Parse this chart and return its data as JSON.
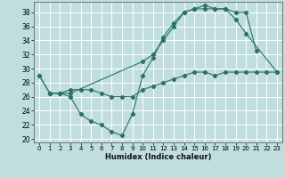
{
  "title": "",
  "xlabel": "Humidex (Indice chaleur)",
  "bg_color": "#c0dede",
  "grid_color": "#ffffff",
  "line_color": "#2a7068",
  "xlim": [
    -0.5,
    23.5
  ],
  "ylim": [
    19.5,
    39.5
  ],
  "xticks": [
    0,
    1,
    2,
    3,
    4,
    5,
    6,
    7,
    8,
    9,
    10,
    11,
    12,
    13,
    14,
    15,
    16,
    17,
    18,
    19,
    20,
    21,
    22,
    23
  ],
  "yticks": [
    20,
    22,
    24,
    26,
    28,
    30,
    32,
    34,
    36,
    38
  ],
  "line1_x": [
    0,
    1,
    2,
    3,
    4,
    5,
    6,
    7,
    8,
    9,
    10,
    11,
    12,
    13,
    14,
    15,
    16,
    17,
    18,
    19,
    20,
    21
  ],
  "line1_y": [
    29,
    26.5,
    26.5,
    26,
    23.5,
    22.5,
    22,
    21,
    20.5,
    23.5,
    29,
    31.5,
    34.5,
    36.5,
    38,
    38.5,
    39,
    38.5,
    38.5,
    38,
    38,
    32.5
  ],
  "line2_x": [
    0,
    1,
    2,
    3,
    10,
    11,
    12,
    13,
    14,
    15,
    16,
    17,
    18,
    19,
    20,
    23
  ],
  "line2_y": [
    29,
    26.5,
    26.5,
    26.5,
    31,
    32,
    34,
    36,
    38,
    38.5,
    38.5,
    38.5,
    38.5,
    37,
    35,
    29.5
  ],
  "line3_x": [
    1,
    2,
    3,
    4,
    5,
    6,
    7,
    8,
    9,
    10,
    11,
    12,
    13,
    14,
    15,
    16,
    17,
    18,
    19,
    20,
    21,
    22,
    23
  ],
  "line3_y": [
    26.5,
    26.5,
    27,
    27,
    27,
    26.5,
    26,
    26,
    26,
    27,
    27.5,
    28,
    28.5,
    29,
    29.5,
    29.5,
    29,
    29.5,
    29.5,
    29.5,
    29.5,
    29.5,
    29.5
  ]
}
